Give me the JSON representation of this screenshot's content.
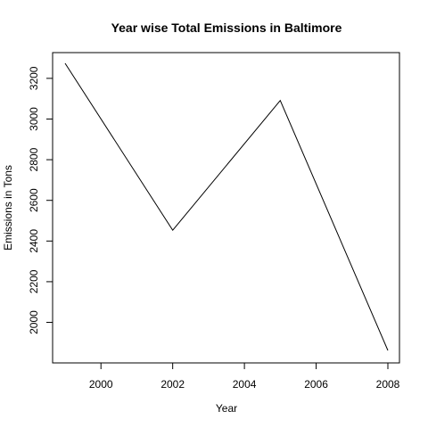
{
  "chart_data": {
    "type": "line",
    "title": "Year wise Total Emissions in Baltimore",
    "xlabel": "Year",
    "ylabel": "Emissions in Tons",
    "x": [
      1999,
      2002,
      2005,
      2008
    ],
    "series": [
      {
        "values": [
          3274,
          2453,
          3091,
          1862
        ]
      }
    ],
    "xlim": [
      1999,
      2008
    ],
    "ylim": [
      1862,
      3274
    ],
    "xticks": [
      2000,
      2002,
      2004,
      2006,
      2008
    ],
    "yticks": [
      2000,
      2200,
      2400,
      2600,
      2800,
      3000,
      3200
    ],
    "grid": false,
    "line_color": "#000000"
  }
}
